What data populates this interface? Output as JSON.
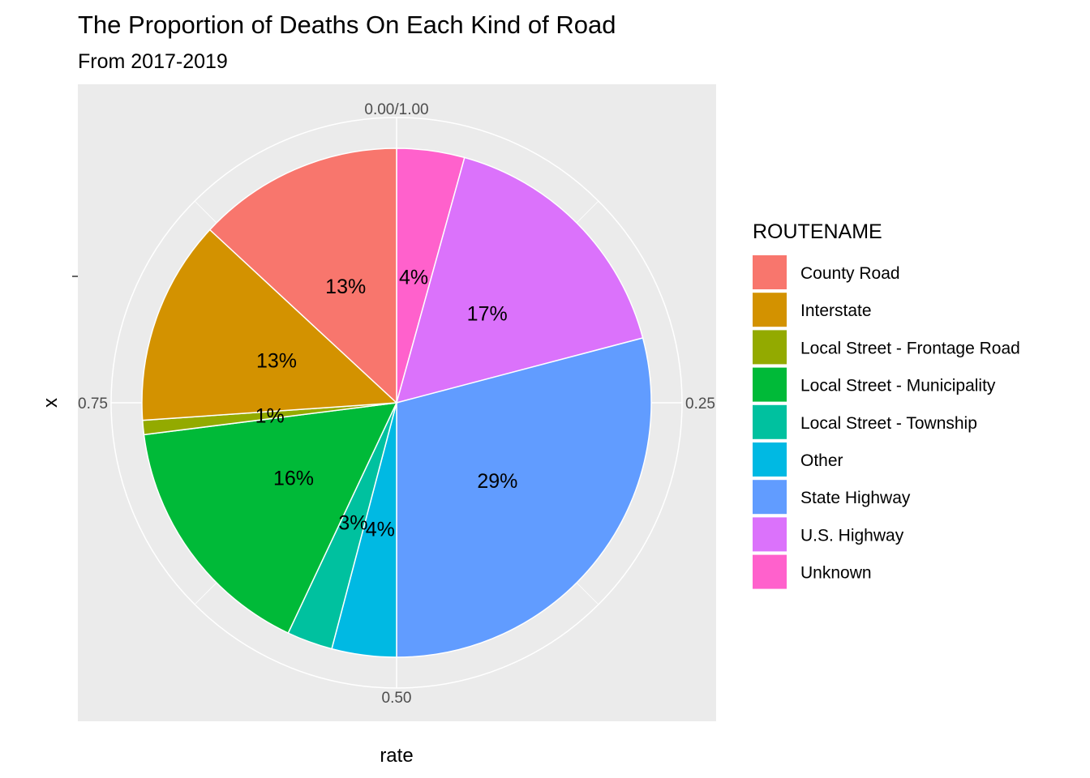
{
  "chart_data": {
    "type": "pie",
    "title": "The Proportion of Deaths On Each Kind of Road",
    "subtitle": "From 2017-2019",
    "xlabel": "rate",
    "ylabel": "x",
    "theta_ticks": [
      {
        "value": 0,
        "label": "0.00/1.00"
      },
      {
        "value": 0.25,
        "label": "0.25"
      },
      {
        "value": 0.5,
        "label": "0.50"
      },
      {
        "value": 0.75,
        "label": "0.75"
      }
    ],
    "legend": {
      "title": "ROUTENAME",
      "position": "right"
    },
    "slices": [
      {
        "name": "Unknown",
        "value": 0.043,
        "label": "4%",
        "color": "#FF61CC"
      },
      {
        "name": "U.S. Highway",
        "value": 0.166,
        "label": "17%",
        "color": "#DB72FB"
      },
      {
        "name": "State Highway",
        "value": 0.291,
        "label": "29%",
        "color": "#619CFF"
      },
      {
        "name": "Other",
        "value": 0.041,
        "label": "4%",
        "color": "#00B9E3"
      },
      {
        "name": "Local Street - Township",
        "value": 0.029,
        "label": "3%",
        "color": "#00C19F"
      },
      {
        "name": "Local Street - Municipality",
        "value": 0.16,
        "label": "16%",
        "color": "#00BA38"
      },
      {
        "name": "Local Street - Frontage Road",
        "value": 0.009,
        "label": "1%",
        "color": "#93AA00"
      },
      {
        "name": "Interstate",
        "value": 0.13,
        "label": "13%",
        "color": "#D39200"
      },
      {
        "name": "County Road",
        "value": 0.131,
        "label": "13%",
        "color": "#F8766D"
      }
    ],
    "legend_order": [
      "County Road",
      "Interstate",
      "Local Street - Frontage Road",
      "Local Street - Municipality",
      "Local Street - Township",
      "Other",
      "State Highway",
      "U.S. Highway",
      "Unknown"
    ],
    "panel_background": "#EBEBEB",
    "grid_color": "#FFFFFF"
  }
}
